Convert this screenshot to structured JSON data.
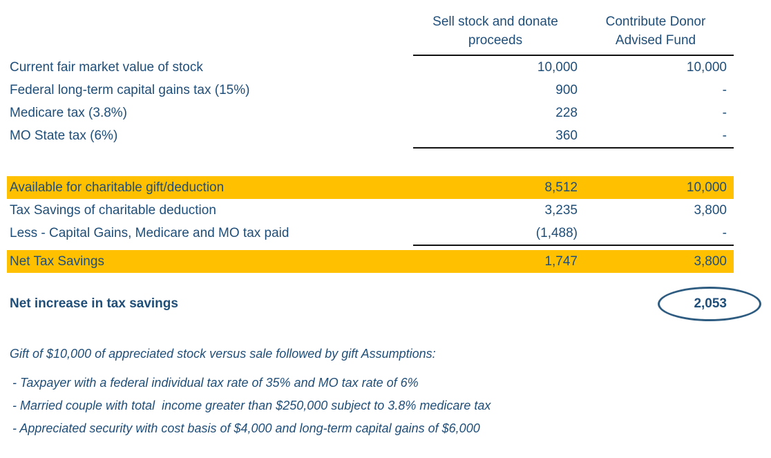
{
  "colors": {
    "text_blue": "#1F4E79",
    "highlight_yellow": "#FFC000",
    "rule_black": "#111111",
    "ellipse_blue": "#2E5B80"
  },
  "table": {
    "column_headers": [
      {
        "line1": "Sell stock and donate",
        "line2": "proceeds"
      },
      {
        "line1": "Contribute Donor",
        "line2": "Advised Fund"
      }
    ],
    "rows": [
      {
        "label": "Current fair market value of stock",
        "sell": "10,000",
        "daf": "10,000"
      },
      {
        "label": "Federal long-term capital gains tax (15%)",
        "sell": "900",
        "daf": "-"
      },
      {
        "label": "Medicare tax (3.8%)",
        "sell": "228",
        "daf": "-"
      },
      {
        "label": "MO State tax (6%)",
        "sell": "360",
        "daf": "-"
      },
      {
        "label": "Available for charitable gift/deduction",
        "sell": "8,512",
        "daf": "10,000"
      },
      {
        "label": "Tax Savings of charitable deduction",
        "sell": "3,235",
        "daf": "3,800"
      },
      {
        "label": "Less - Capital Gains, Medicare and MO tax paid",
        "sell": "(1,488)",
        "daf": "-"
      },
      {
        "label": "Net Tax Savings",
        "sell": "1,747",
        "daf": "3,800"
      }
    ]
  },
  "summary": {
    "label": "Net increase in tax savings",
    "value": "2,053"
  },
  "footnotes": {
    "intro": "Gift of $10,000 of appreciated stock versus sale followed by gift Assumptions:",
    "items": [
      "- Taxpayer with a federal individual tax rate of 35% and MO tax rate of 6%",
      "- Married couple with total  income greater than $250,000 subject to 3.8% medicare tax",
      "- Appreciated security with cost basis of $4,000 and long-term capital gains of $6,000"
    ]
  }
}
